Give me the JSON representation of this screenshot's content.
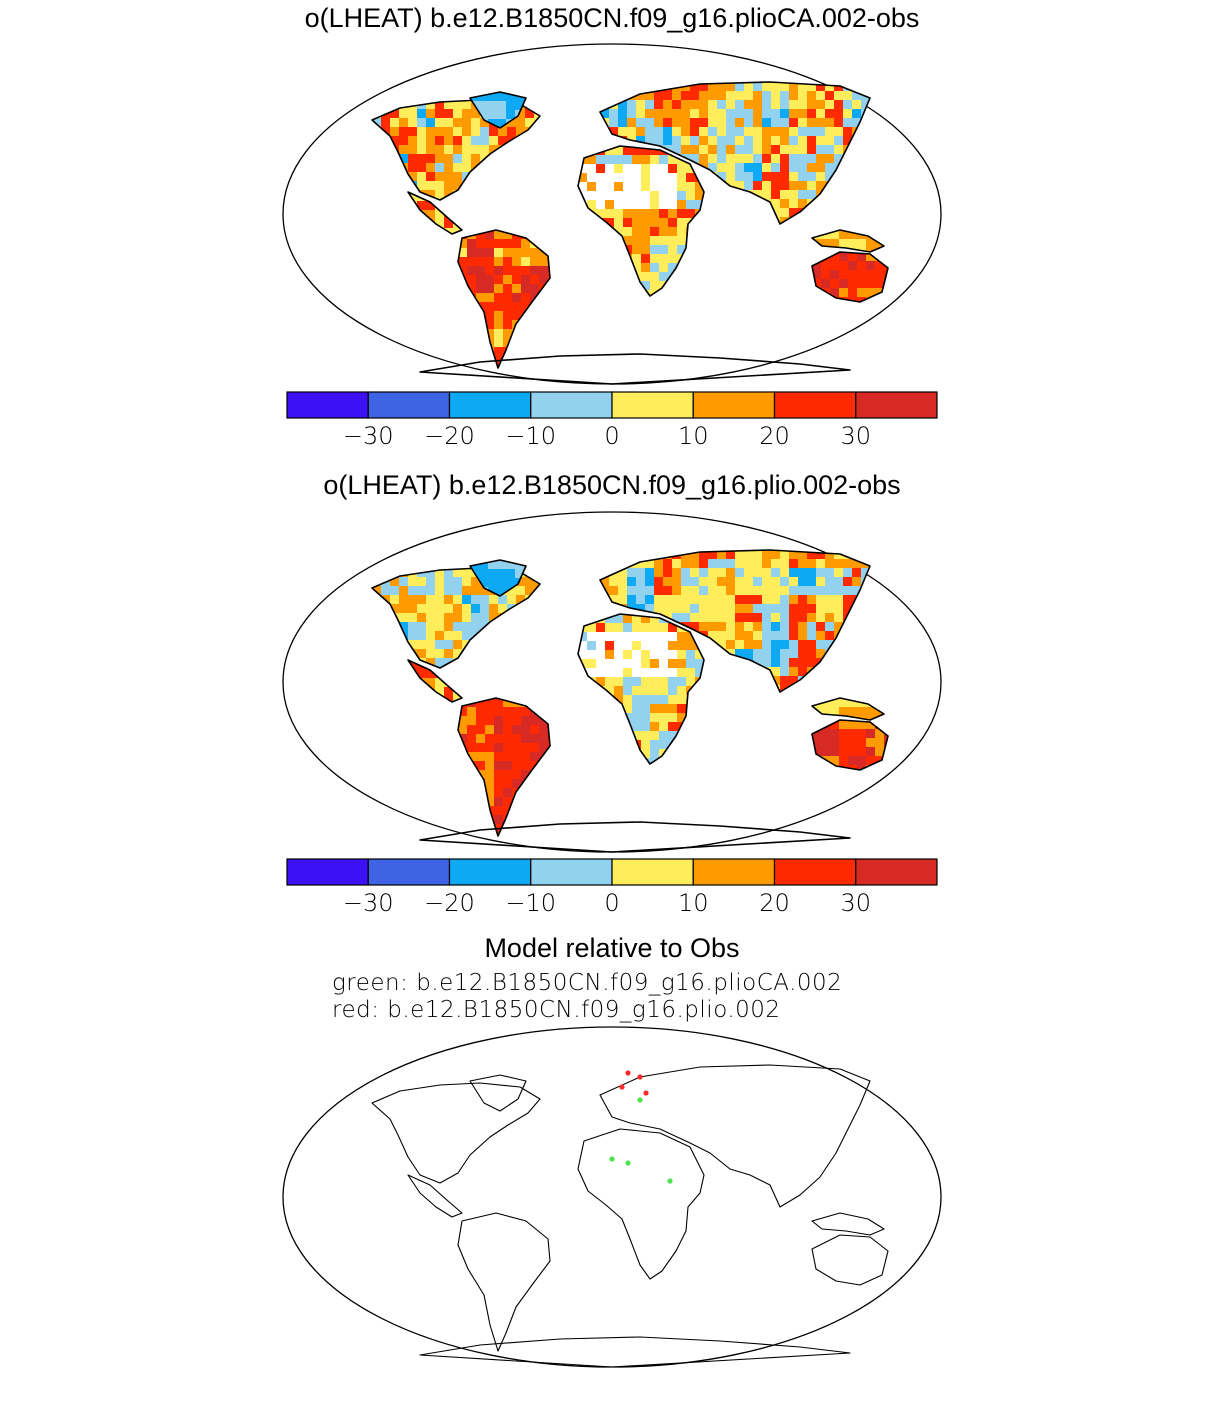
{
  "panels": [
    {
      "title": "o(LHEAT) b.e12.B1850CN.f09_g16.plioCA.002-obs"
    },
    {
      "title": "o(LHEAT) b.e12.B1850CN.f09_g16.plio.002-obs"
    },
    {
      "title": "Model relative to Obs",
      "legend": [
        "green: b.e12.B1850CN.f09_g16.plioCA.002",
        "red: b.e12.B1850CN.f09_g16.plio.002"
      ]
    }
  ],
  "colorbar": {
    "colors": [
      "#3d10f5",
      "#3e63e3",
      "#0ea9f5",
      "#92d2ee",
      "#ffed5b",
      "#ff9a00",
      "#ff2a00",
      "#d72a24"
    ],
    "tick_labels": [
      "−30",
      "−20",
      "−10",
      "0",
      "10",
      "20",
      "30"
    ]
  },
  "chart_data": {
    "type": "heatmap",
    "projection": "robinson",
    "colorbar_levels": [
      -30,
      -20,
      -10,
      0,
      10,
      20,
      30
    ],
    "marker_colors": {
      "green": "#4ee24e",
      "red": "#ff2a2a"
    }
  }
}
